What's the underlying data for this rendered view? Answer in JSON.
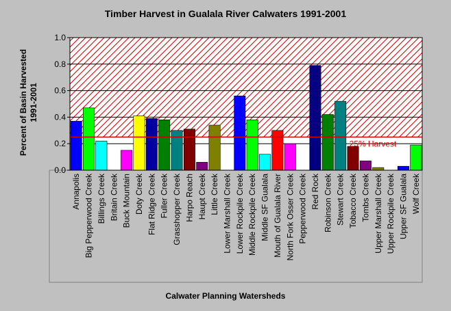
{
  "chart_data": {
    "type": "bar",
    "title": "Timber Harvest in Gualala River Calwaters 1991-2001",
    "xlabel": "Calwater Planning Watersheds",
    "ylabel": "Percent of Basin Harvested",
    "ylabel2": "1991-2001",
    "ylim": [
      0,
      1.0
    ],
    "yticks": [
      "0.0",
      "0.2",
      "0.4",
      "0.6",
      "0.8",
      "1.0"
    ],
    "grid": true,
    "threshold": {
      "value": 0.25,
      "label": "25% Harvest",
      "color": "#cc0000"
    },
    "categories": [
      "Annapolis",
      "Big Pepperwood Creek",
      "Billings Creek",
      "Britain Creek",
      "Buck Mountain",
      "Doty Creek",
      "Flat Ridge Creek",
      "Fuller Creek",
      "Grasshopper Creek",
      "Harpo Reach",
      "Haupt Creek",
      "Little Creek",
      "Lower Marshall Creek",
      "Lower Rockpile Creek",
      "Middle Rockpile Creek",
      "Middle SF Gualala",
      "Mouth of Gualala River",
      "North Fork Osser Creek",
      "Pepperwood Creek",
      "Red Rock",
      "Robinson Creek",
      "Stewart Creek",
      "Tobacco Creek",
      "Tombs Creek",
      "Upper Marshall Creek",
      "Upper Rockpile Creek",
      "Upper SF Gualala",
      "Wolf Creek"
    ],
    "values": [
      0.37,
      0.47,
      0.22,
      0.0,
      0.15,
      0.41,
      0.39,
      0.38,
      0.3,
      0.31,
      0.06,
      0.34,
      0.0,
      0.56,
      0.38,
      0.12,
      0.3,
      0.2,
      0.0,
      0.79,
      0.42,
      0.52,
      0.18,
      0.07,
      0.02,
      0.0,
      0.03,
      0.19
    ],
    "colors": [
      "#0000ff",
      "#00ff00",
      "#00ffff",
      "#ff0000",
      "#ff00ff",
      "#ffff00",
      "#0000a0",
      "#008000",
      "#008080",
      "#800000",
      "#800080",
      "#808000",
      "#808080",
      "#0000ff",
      "#00ff00",
      "#00ffff",
      "#ff0000",
      "#ff00ff",
      "#ffff00",
      "#000080",
      "#008000",
      "#008080",
      "#800000",
      "#800080",
      "#808000",
      "#808080",
      "#0000ff",
      "#00ff00"
    ]
  }
}
